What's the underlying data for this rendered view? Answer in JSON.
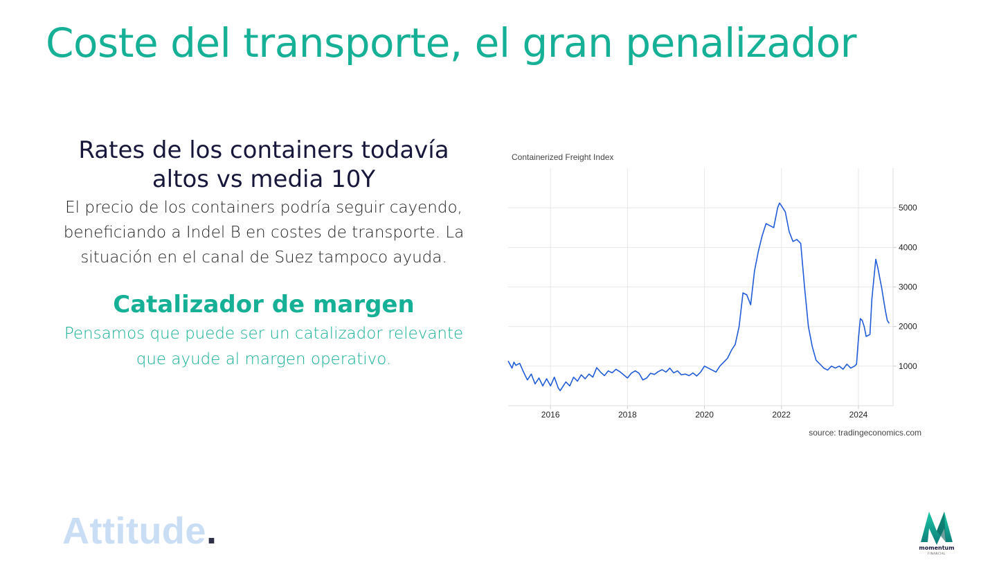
{
  "slide": {
    "title": "Coste del transporte, el gran penalizador",
    "headline": "Rates de los containers todavía altos vs media 10Y",
    "body": "El precio de los containers podría seguir cayendo, beneficiando a Indel B en costes de transporte. La situación en el canal de Suez tampoco ayuda.",
    "subhead": "Catalizador de margen",
    "subtext": "Pensamos que puede ser un catalizador relevante que ayude al margen operativo.",
    "brand": "Attitude",
    "brand_dot": ".",
    "logo_name": "momentum",
    "logo_sub": "FINANCIAL"
  },
  "colors": {
    "accent": "#15b096",
    "headline": "#16173a",
    "line": "#1f5bd8",
    "brand_light": "#c9ddf4"
  },
  "chart_data": {
    "type": "line",
    "title": "Containerized Freight Index",
    "source": "source: tradingeconomics.com",
    "xlabel": "",
    "ylabel": "",
    "xlim": [
      2014.9,
      2024.9
    ],
    "ylim": [
      0,
      6000
    ],
    "x_ticks": [
      2016,
      2018,
      2020,
      2022,
      2024
    ],
    "y_ticks": [
      1000,
      2000,
      3000,
      4000,
      5000
    ],
    "y_axis_side": "right",
    "grid": true,
    "series": [
      {
        "values": [
          [
            2014.9,
            1130
          ],
          [
            2015.0,
            950
          ],
          [
            2015.05,
            1100
          ],
          [
            2015.1,
            1020
          ],
          [
            2015.2,
            1070
          ],
          [
            2015.3,
            850
          ],
          [
            2015.4,
            650
          ],
          [
            2015.5,
            800
          ],
          [
            2015.6,
            550
          ],
          [
            2015.7,
            700
          ],
          [
            2015.8,
            500
          ],
          [
            2015.9,
            680
          ],
          [
            2016.0,
            500
          ],
          [
            2016.1,
            720
          ],
          [
            2016.2,
            450
          ],
          [
            2016.25,
            380
          ],
          [
            2016.4,
            600
          ],
          [
            2016.5,
            500
          ],
          [
            2016.6,
            720
          ],
          [
            2016.7,
            620
          ],
          [
            2016.8,
            780
          ],
          [
            2016.9,
            680
          ],
          [
            2017.0,
            800
          ],
          [
            2017.1,
            720
          ],
          [
            2017.2,
            960
          ],
          [
            2017.3,
            850
          ],
          [
            2017.4,
            760
          ],
          [
            2017.5,
            880
          ],
          [
            2017.6,
            830
          ],
          [
            2017.7,
            920
          ],
          [
            2017.8,
            860
          ],
          [
            2017.9,
            780
          ],
          [
            2018.0,
            700
          ],
          [
            2018.1,
            820
          ],
          [
            2018.2,
            880
          ],
          [
            2018.3,
            820
          ],
          [
            2018.4,
            650
          ],
          [
            2018.5,
            700
          ],
          [
            2018.6,
            820
          ],
          [
            2018.7,
            790
          ],
          [
            2018.8,
            860
          ],
          [
            2018.9,
            910
          ],
          [
            2019.0,
            850
          ],
          [
            2019.1,
            950
          ],
          [
            2019.2,
            830
          ],
          [
            2019.3,
            880
          ],
          [
            2019.4,
            780
          ],
          [
            2019.5,
            800
          ],
          [
            2019.6,
            760
          ],
          [
            2019.7,
            830
          ],
          [
            2019.8,
            750
          ],
          [
            2019.9,
            850
          ],
          [
            2020.0,
            1000
          ],
          [
            2020.1,
            950
          ],
          [
            2020.2,
            900
          ],
          [
            2020.3,
            850
          ],
          [
            2020.4,
            1000
          ],
          [
            2020.5,
            1100
          ],
          [
            2020.6,
            1200
          ],
          [
            2020.7,
            1400
          ],
          [
            2020.8,
            1550
          ],
          [
            2020.9,
            2000
          ],
          [
            2021.0,
            2850
          ],
          [
            2021.1,
            2800
          ],
          [
            2021.2,
            2550
          ],
          [
            2021.3,
            3400
          ],
          [
            2021.4,
            3900
          ],
          [
            2021.5,
            4300
          ],
          [
            2021.6,
            4600
          ],
          [
            2021.7,
            4550
          ],
          [
            2021.8,
            4500
          ],
          [
            2021.9,
            5000
          ],
          [
            2021.95,
            5120
          ],
          [
            2022.0,
            5050
          ],
          [
            2022.1,
            4900
          ],
          [
            2022.2,
            4400
          ],
          [
            2022.3,
            4150
          ],
          [
            2022.4,
            4200
          ],
          [
            2022.5,
            4100
          ],
          [
            2022.6,
            3000
          ],
          [
            2022.7,
            2000
          ],
          [
            2022.8,
            1500
          ],
          [
            2022.9,
            1150
          ],
          [
            2023.0,
            1050
          ],
          [
            2023.1,
            950
          ],
          [
            2023.2,
            900
          ],
          [
            2023.3,
            1000
          ],
          [
            2023.4,
            950
          ],
          [
            2023.5,
            1000
          ],
          [
            2023.6,
            920
          ],
          [
            2023.7,
            1050
          ],
          [
            2023.8,
            950
          ],
          [
            2023.9,
            1000
          ],
          [
            2023.95,
            1050
          ],
          [
            2024.0,
            1700
          ],
          [
            2024.05,
            2200
          ],
          [
            2024.1,
            2150
          ],
          [
            2024.15,
            2000
          ],
          [
            2024.2,
            1750
          ],
          [
            2024.3,
            1800
          ],
          [
            2024.35,
            2700
          ],
          [
            2024.4,
            3200
          ],
          [
            2024.45,
            3700
          ],
          [
            2024.5,
            3500
          ],
          [
            2024.55,
            3250
          ],
          [
            2024.6,
            3000
          ],
          [
            2024.7,
            2400
          ],
          [
            2024.75,
            2150
          ],
          [
            2024.8,
            2080
          ]
        ]
      }
    ]
  }
}
